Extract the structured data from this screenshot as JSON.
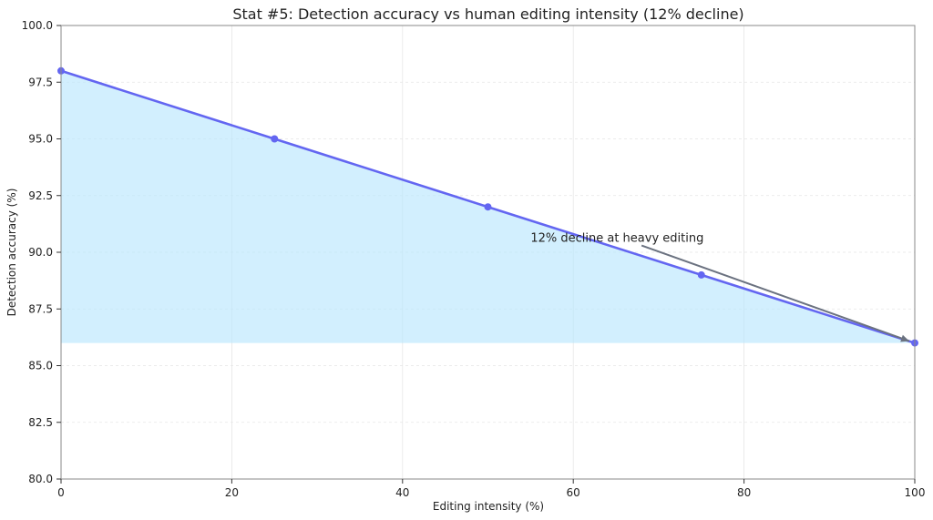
{
  "chart_data": {
    "type": "line",
    "title": "Stat #5: Detection accuracy vs human editing intensity (12% decline)",
    "xlabel": "Editing intensity (%)",
    "ylabel": "Detection accuracy (%)",
    "x": [
      0,
      25,
      50,
      75,
      100
    ],
    "series": [
      {
        "values": [
          98,
          95,
          92,
          89,
          86
        ]
      }
    ],
    "xlim": [
      0,
      100
    ],
    "ylim": [
      80,
      100
    ],
    "xticks": [
      0,
      20,
      40,
      60,
      80,
      100
    ],
    "xtick_labels": [
      "0",
      "20",
      "40",
      "60",
      "80",
      "100"
    ],
    "yticks": [
      80,
      82.5,
      85,
      87.5,
      90,
      92.5,
      95,
      97.5,
      100
    ],
    "ytick_labels": [
      "80.0",
      "82.5",
      "85.0",
      "87.5",
      "90.0",
      "92.5",
      "95.0",
      "97.5",
      "100.0"
    ],
    "fill_baseline": 86,
    "grid": true,
    "annotation": {
      "text": "12% decline at heavy editing",
      "arrow_from": [
        68,
        90.3
      ],
      "arrow_to": [
        100,
        86
      ]
    },
    "colors": {
      "line": "#6366f1",
      "fill": "#bae6fd",
      "arrow": "#6b7280",
      "grid": "#e5e5e5",
      "axis": "#888888"
    }
  }
}
